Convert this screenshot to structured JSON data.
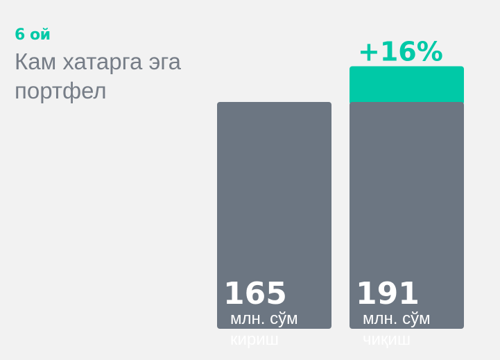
{
  "header": {
    "period": "6 ой",
    "title": "Кам хатарга эга портфел"
  },
  "colors": {
    "accent": "#00c9a7",
    "bar": "#6c7682",
    "text_gray": "#767d87",
    "background": "#f2f2f2"
  },
  "chart_data": {
    "type": "bar",
    "categories": [
      "кириш",
      "чиқиш"
    ],
    "values": [
      165,
      191
    ],
    "unit": "млн. сўм",
    "increase_label": "+16%",
    "increase_value": 26,
    "ylim": [
      0,
      200
    ],
    "grid": false,
    "legend": "none"
  }
}
